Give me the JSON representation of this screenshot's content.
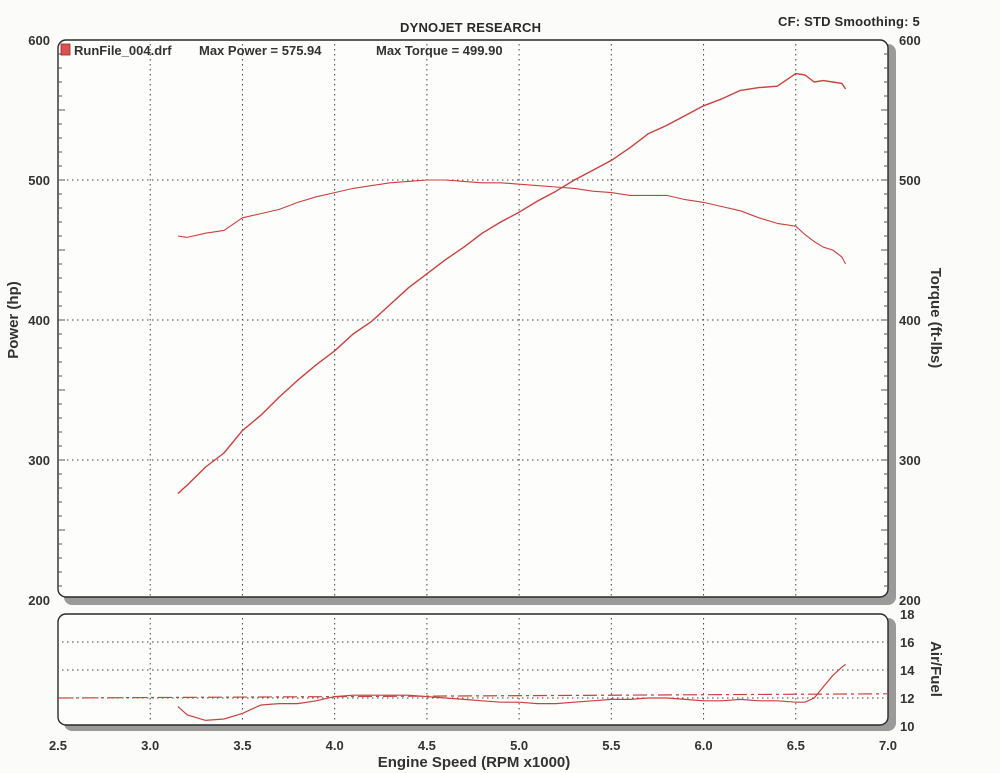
{
  "header": {
    "title": "DYNOJET RESEARCH",
    "settings": "CF: STD  Smoothing: 5"
  },
  "legend": {
    "run_file": "RunFile_004.drf",
    "max_power_label": "Max Power = 575.94",
    "max_torque_label": "Max Torque = 499.90"
  },
  "colors": {
    "trace": "#c8423f",
    "frame": "#2a2a2a",
    "shadow": "#9a9a9a"
  },
  "chart_data": [
    {
      "type": "line",
      "title": "",
      "xlabel": "Engine Speed (RPM x1000)",
      "ylabel": "Power (hp)",
      "y2label": "Torque (ft-lbs)",
      "xlim": [
        2.5,
        7.0
      ],
      "ylim": [
        200,
        600
      ],
      "y2lim": [
        200,
        600
      ],
      "x_ticks": [
        "2.5",
        "3.0",
        "3.5",
        "4.0",
        "4.5",
        "5.0",
        "5.5",
        "6.0",
        "6.5",
        "7.0"
      ],
      "y_ticks": [
        "200",
        "300",
        "400",
        "500",
        "600"
      ],
      "y2_ticks": [
        "200",
        "300",
        "400",
        "500",
        "600"
      ],
      "grid": true,
      "series": [
        {
          "name": "Power",
          "axis": "left",
          "x": [
            3.15,
            3.2,
            3.3,
            3.4,
            3.5,
            3.6,
            3.7,
            3.8,
            3.9,
            4.0,
            4.1,
            4.2,
            4.3,
            4.4,
            4.5,
            4.6,
            4.7,
            4.8,
            4.9,
            5.0,
            5.1,
            5.2,
            5.3,
            5.4,
            5.5,
            5.6,
            5.7,
            5.8,
            5.9,
            6.0,
            6.1,
            6.2,
            6.3,
            6.4,
            6.5,
            6.55,
            6.6,
            6.65,
            6.7,
            6.75,
            6.77
          ],
          "y": [
            276,
            282,
            295,
            305,
            321,
            332,
            345,
            357,
            368,
            378,
            390,
            399,
            411,
            423,
            433,
            443,
            452,
            462,
            470,
            477,
            485,
            492,
            500,
            507,
            514,
            523,
            533,
            539,
            546,
            553,
            558,
            564,
            566,
            567,
            576,
            575,
            570,
            571,
            570,
            569,
            565
          ]
        },
        {
          "name": "Torque",
          "axis": "right",
          "x": [
            3.15,
            3.2,
            3.3,
            3.4,
            3.5,
            3.6,
            3.7,
            3.8,
            3.9,
            4.0,
            4.1,
            4.2,
            4.3,
            4.4,
            4.5,
            4.6,
            4.7,
            4.8,
            4.9,
            5.0,
            5.1,
            5.2,
            5.3,
            5.4,
            5.5,
            5.6,
            5.7,
            5.8,
            5.9,
            6.0,
            6.1,
            6.2,
            6.3,
            6.4,
            6.5,
            6.55,
            6.6,
            6.65,
            6.7,
            6.75,
            6.77
          ],
          "y": [
            460,
            459,
            462,
            464,
            473,
            476,
            479,
            484,
            488,
            491,
            494,
            496,
            498,
            499,
            500,
            500,
            499,
            498,
            498,
            497,
            496,
            495,
            494,
            492,
            491,
            489,
            489,
            489,
            486,
            484,
            481,
            478,
            473,
            469,
            467,
            461,
            456,
            452,
            450,
            445,
            440
          ]
        }
      ]
    },
    {
      "type": "line",
      "title": "",
      "xlabel": "Engine Speed (RPM x1000)",
      "ylabel": "",
      "y2label": "Air/Fuel",
      "xlim": [
        2.5,
        7.0
      ],
      "y2lim": [
        10,
        18
      ],
      "x_ticks": [
        "2.5",
        "3.0",
        "3.5",
        "4.0",
        "4.5",
        "5.0",
        "5.5",
        "6.0",
        "6.5",
        "7.0"
      ],
      "y2_ticks": [
        "10",
        "12",
        "14",
        "16",
        "18"
      ],
      "grid": true,
      "series": [
        {
          "name": "Air/Fuel",
          "axis": "right",
          "x": [
            3.15,
            3.2,
            3.3,
            3.4,
            3.5,
            3.6,
            3.7,
            3.8,
            3.9,
            4.0,
            4.1,
            4.2,
            4.3,
            4.4,
            4.5,
            4.6,
            4.7,
            4.8,
            4.9,
            5.0,
            5.1,
            5.2,
            5.3,
            5.4,
            5.5,
            5.6,
            5.7,
            5.8,
            5.9,
            6.0,
            6.1,
            6.2,
            6.3,
            6.4,
            6.5,
            6.55,
            6.6,
            6.65,
            6.7,
            6.75,
            6.77
          ],
          "y": [
            11.4,
            10.8,
            10.4,
            10.5,
            10.9,
            11.5,
            11.6,
            11.6,
            11.8,
            12.1,
            12.2,
            12.2,
            12.2,
            12.2,
            12.1,
            12.0,
            11.9,
            11.8,
            11.7,
            11.7,
            11.6,
            11.6,
            11.7,
            11.8,
            11.9,
            11.9,
            12.0,
            12.0,
            11.9,
            11.8,
            11.8,
            11.9,
            11.8,
            11.8,
            11.7,
            11.7,
            12.0,
            12.8,
            13.6,
            14.2,
            14.4
          ]
        },
        {
          "name": "",
          "axis": "right",
          "style": "dash-dot",
          "x": [
            2.5,
            7.0
          ],
          "y": [
            12.0,
            12.3
          ]
        }
      ]
    }
  ]
}
